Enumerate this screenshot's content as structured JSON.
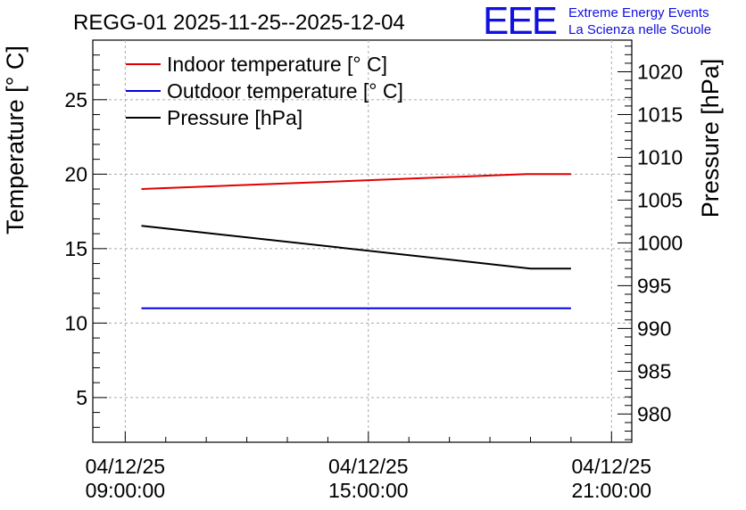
{
  "chart_data": {
    "type": "line",
    "title": "REGG-01 2025-11-25--2025-12-04",
    "ylabel": "Temperature [° C]",
    "y2label": "Pressure [hPa]",
    "x_categories": [
      {
        "date": "04/12/25",
        "time": "09:00:00"
      },
      {
        "date": "04/12/25",
        "time": "15:00:00"
      },
      {
        "date": "04/12/25",
        "time": "21:00:00"
      }
    ],
    "x_hours_range": [
      8.2,
      21.5
    ],
    "x_ticks_hours": [
      9,
      15,
      21
    ],
    "ylim": [
      2,
      29
    ],
    "y_ticks": [
      5,
      10,
      15,
      20,
      25
    ],
    "y2lim": [
      976.7,
      1023.7
    ],
    "y2_ticks": [
      980,
      985,
      990,
      995,
      1000,
      1005,
      1010,
      1015,
      1020
    ],
    "grid": true,
    "legend_position": "top-left",
    "series": [
      {
        "name": "Indoor temperature [° C]",
        "axis": "left",
        "color": "#e00000",
        "points": [
          [
            9.4,
            19.0
          ],
          [
            18.9,
            20.0
          ],
          [
            20.0,
            20.0
          ]
        ]
      },
      {
        "name": "Outdoor temperature [° C]",
        "axis": "left",
        "color": "#0000e0",
        "points": [
          [
            9.4,
            11.0
          ],
          [
            20.0,
            11.0
          ]
        ]
      },
      {
        "name": "Pressure [hPa]",
        "axis": "right",
        "color": "#000000",
        "points": [
          [
            9.4,
            1002.0
          ],
          [
            19.0,
            997.0
          ],
          [
            20.0,
            997.0
          ]
        ]
      }
    ]
  },
  "branding": {
    "logo_text": "EEE",
    "line1": "Extreme Energy Events",
    "line2": "La Scienza nelle Scuole",
    "color": "#1010e0"
  }
}
